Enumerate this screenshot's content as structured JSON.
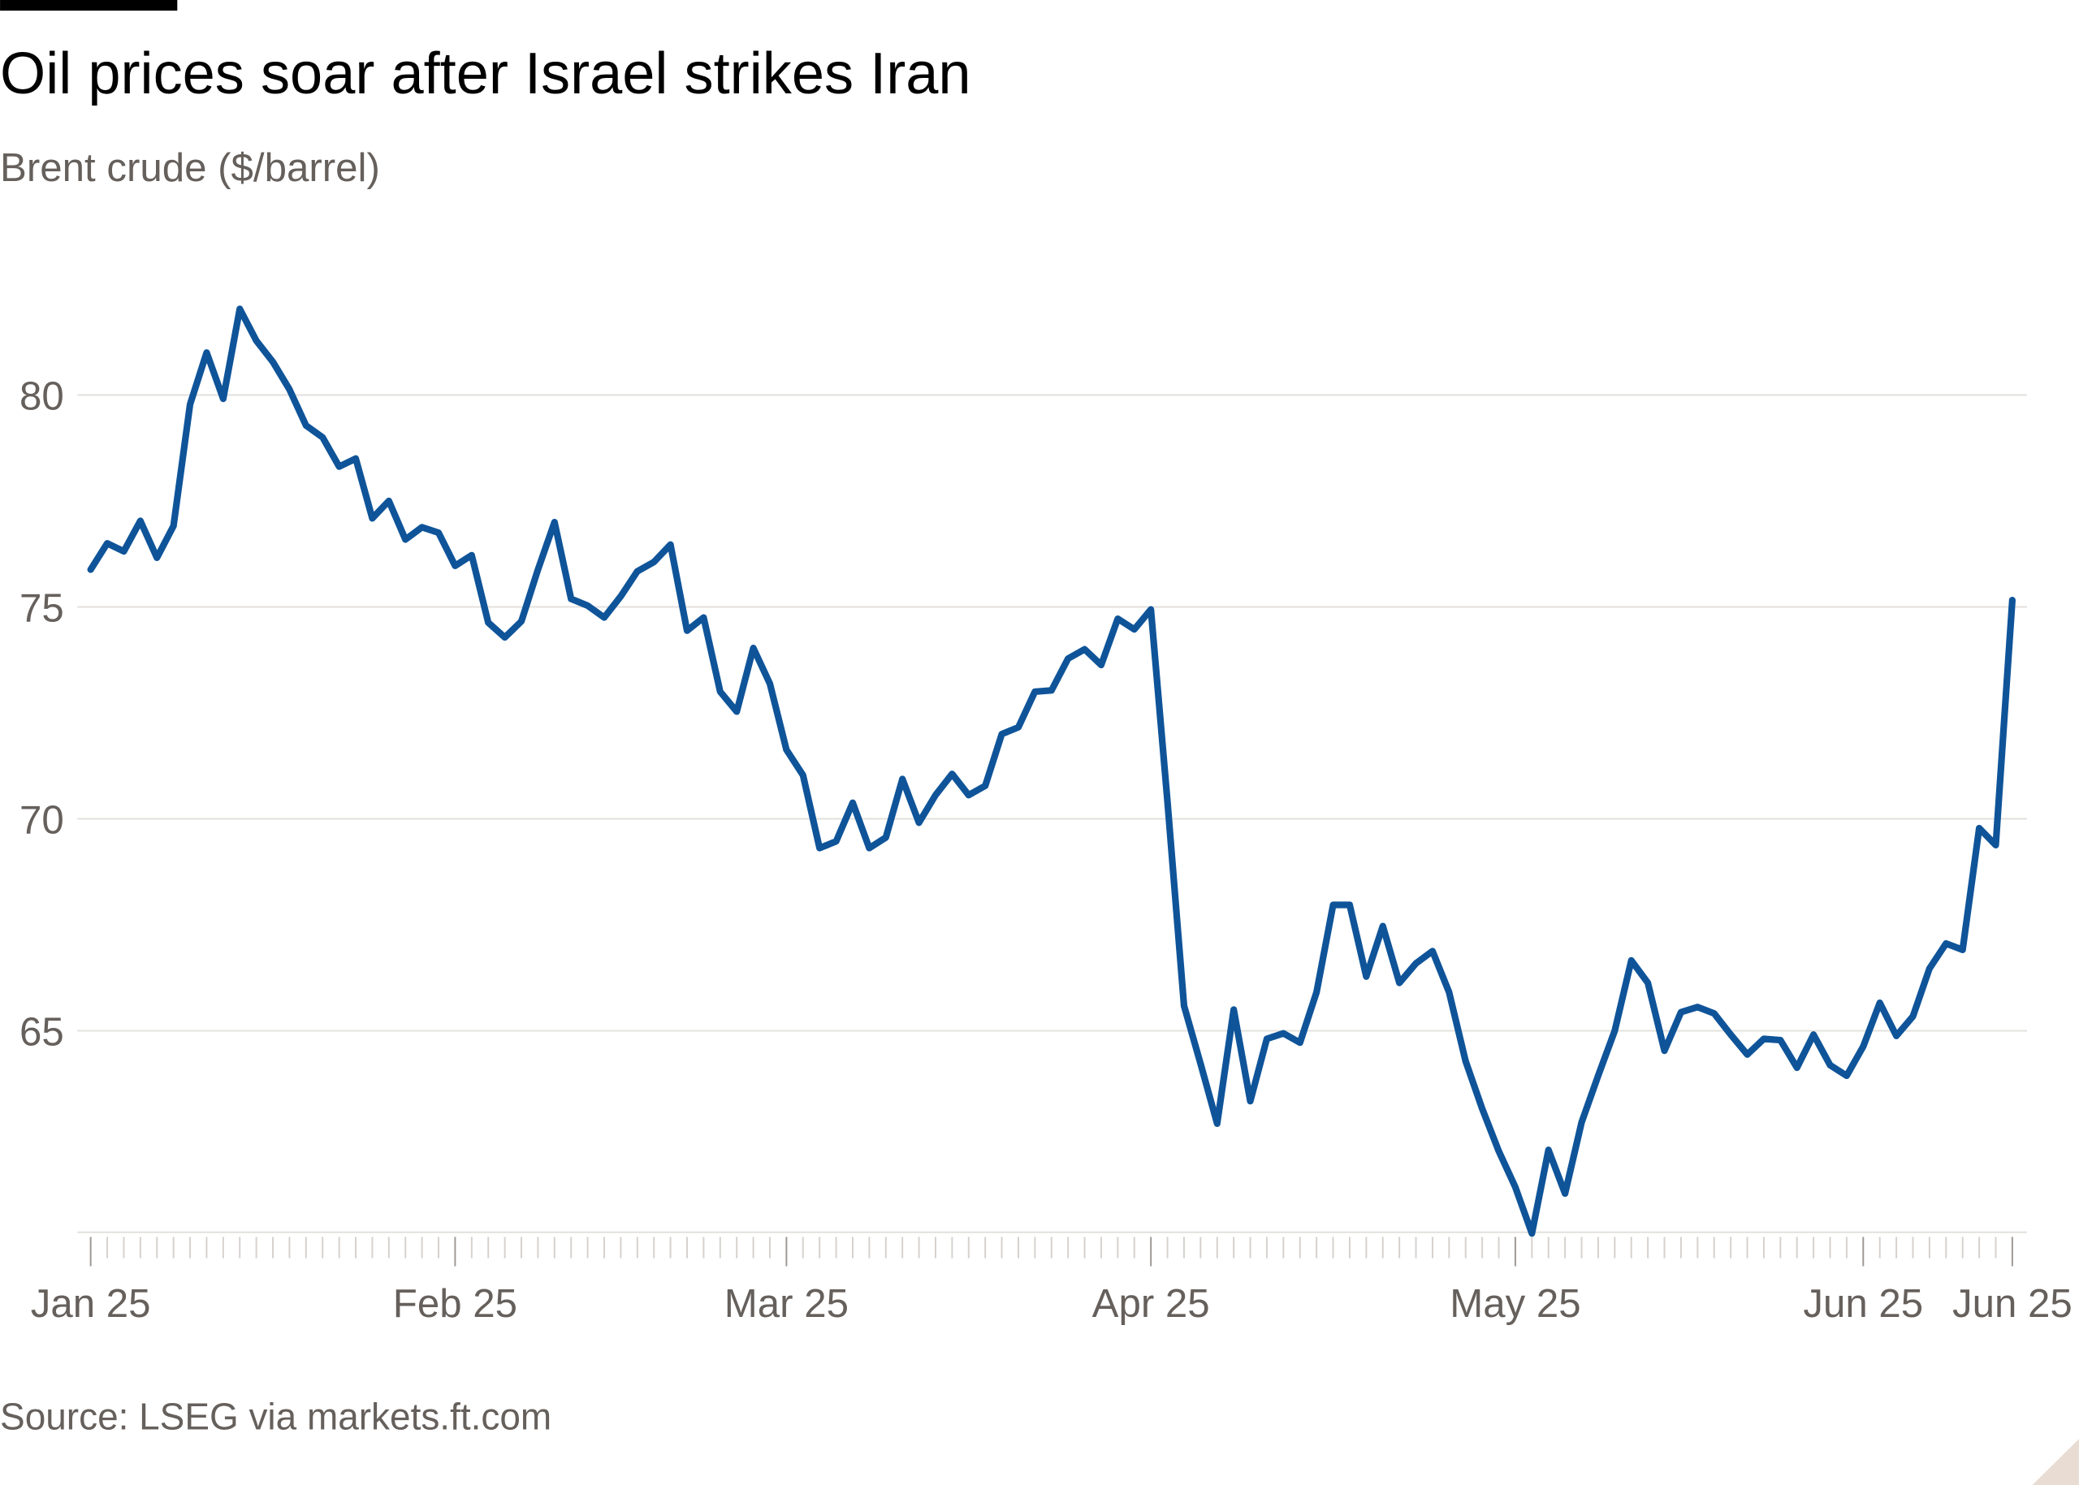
{
  "chart_data": {
    "type": "line",
    "title": "Oil prices soar after Israel strikes Iran",
    "subtitle": "Brent crude ($/barrel)",
    "source": "Source: LSEG via markets.ft.com",
    "categories": [
      "Jan 25",
      null,
      null,
      null,
      null,
      null,
      null,
      null,
      null,
      null,
      null,
      null,
      null,
      null,
      null,
      null,
      null,
      null,
      null,
      null,
      null,
      null,
      "Feb 25",
      null,
      null,
      null,
      null,
      null,
      null,
      null,
      null,
      null,
      null,
      null,
      null,
      null,
      null,
      null,
      null,
      null,
      null,
      null,
      "Mar 25",
      null,
      null,
      null,
      null,
      null,
      null,
      null,
      null,
      null,
      null,
      null,
      null,
      null,
      null,
      null,
      null,
      null,
      null,
      null,
      null,
      null,
      "Apr 25",
      null,
      null,
      null,
      null,
      null,
      null,
      null,
      null,
      null,
      null,
      null,
      null,
      null,
      null,
      null,
      null,
      null,
      null,
      null,
      null,
      null,
      "May 25",
      null,
      null,
      null,
      null,
      null,
      null,
      null,
      null,
      null,
      null,
      null,
      null,
      null,
      null,
      null,
      null,
      null,
      null,
      null,
      null,
      "Jun 25",
      null,
      null,
      null,
      null,
      null,
      null,
      null,
      null,
      "Jun 25"
    ],
    "series": [
      {
        "name": "Brent crude",
        "color": "#0f5499",
        "values": [
          75.88,
          76.5,
          76.31,
          77.03,
          76.16,
          76.91,
          79.78,
          81.0,
          79.91,
          82.03,
          81.28,
          80.78,
          80.13,
          79.28,
          79.0,
          78.31,
          78.5,
          77.09,
          77.5,
          76.59,
          76.88,
          76.75,
          75.97,
          76.22,
          74.63,
          74.28,
          74.66,
          75.88,
          77.0,
          75.19,
          75.03,
          74.75,
          75.25,
          75.84,
          76.06,
          76.47,
          74.44,
          74.75,
          73.0,
          72.53,
          74.03,
          73.19,
          71.63,
          71.03,
          69.31,
          69.47,
          70.38,
          69.31,
          69.56,
          70.94,
          69.91,
          70.56,
          71.06,
          70.56,
          70.78,
          72.0,
          72.16,
          73.0,
          73.03,
          73.78,
          74.0,
          73.63,
          74.72,
          74.47,
          74.94,
          70.41,
          65.59,
          64.22,
          62.81,
          65.5,
          63.34,
          64.81,
          64.94,
          64.72,
          65.91,
          67.97,
          67.97,
          66.28,
          67.47,
          66.13,
          66.59,
          66.88,
          65.91,
          64.28,
          63.16,
          62.16,
          61.31,
          60.22,
          62.19,
          61.16,
          62.84,
          63.94,
          65.0,
          66.66,
          66.13,
          64.53,
          65.44,
          65.56,
          65.41,
          64.91,
          64.44,
          64.81,
          64.78,
          64.13,
          64.91,
          64.19,
          63.94,
          64.63,
          65.66,
          64.88,
          65.34,
          66.47,
          67.06,
          66.91,
          69.78,
          69.38,
          75.16
        ]
      }
    ],
    "ylim": [
      60.2,
      83
    ],
    "yticks": [
      65,
      70,
      75,
      80
    ],
    "grid": true
  }
}
